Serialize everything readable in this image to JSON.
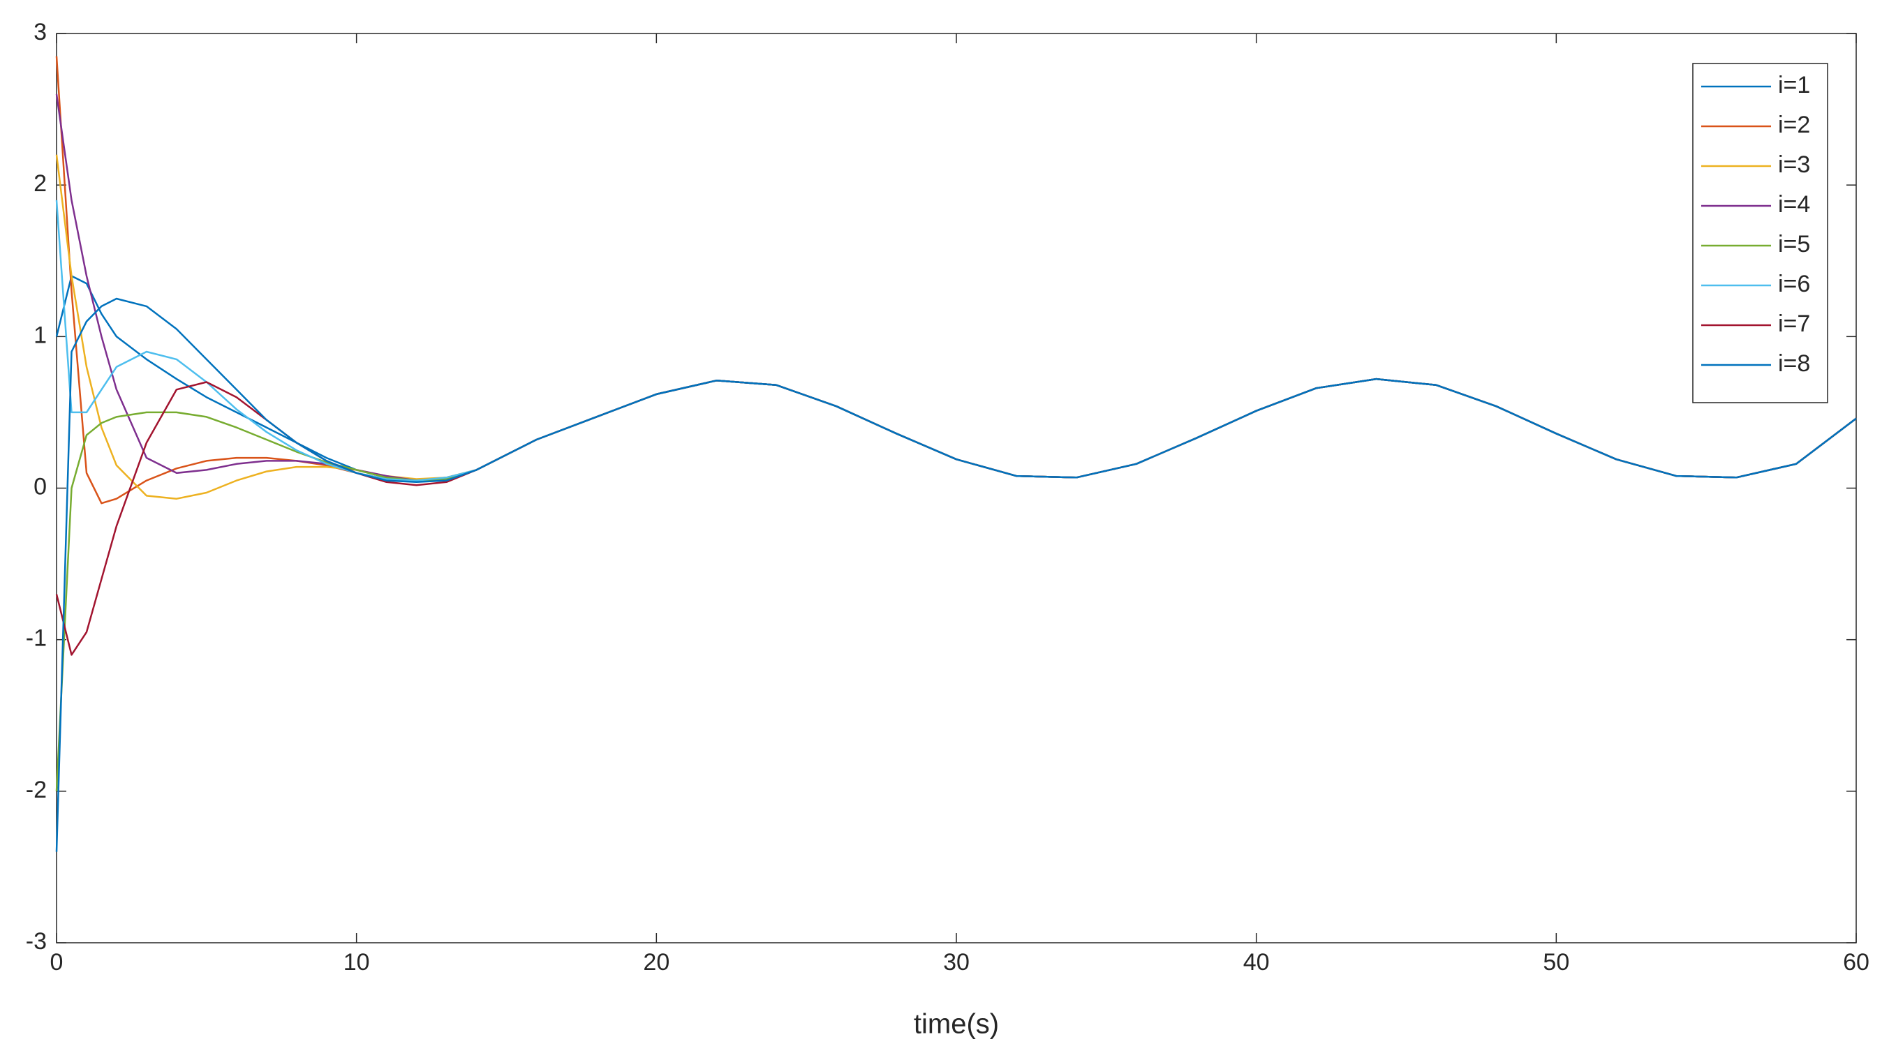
{
  "chart_data": {
    "type": "line",
    "xlabel": "time(s)",
    "x": [
      0,
      0.5,
      1,
      1.5,
      2,
      3,
      4,
      5,
      6,
      7,
      8,
      9,
      10,
      11,
      12,
      13,
      14,
      16,
      18,
      20,
      22,
      24,
      26,
      28,
      30,
      32,
      34,
      36,
      38,
      40,
      42,
      44,
      46,
      48,
      50,
      52,
      54,
      56,
      58,
      60
    ],
    "series": [
      {
        "name": "i=1",
        "color": "#0072BD",
        "values": [
          1.0,
          1.4,
          1.35,
          1.15,
          1.0,
          0.85,
          0.72,
          0.6,
          0.5,
          0.4,
          0.3,
          0.2,
          0.12,
          0.07,
          0.05,
          0.06,
          0.12,
          0.32,
          0.47,
          0.62,
          0.71,
          0.68,
          0.54,
          0.36,
          0.19,
          0.08,
          0.07,
          0.16,
          0.33,
          0.51,
          0.66,
          0.72,
          0.68,
          0.54,
          0.36,
          0.19,
          0.08,
          0.07,
          0.16,
          0.46
        ]
      },
      {
        "name": "i=2",
        "color": "#D95319",
        "values": [
          2.85,
          1.3,
          0.1,
          -0.1,
          -0.07,
          0.05,
          0.13,
          0.18,
          0.2,
          0.2,
          0.18,
          0.15,
          0.1,
          0.06,
          0.05,
          0.07,
          0.12,
          0.32,
          0.47,
          0.62,
          0.71,
          0.68,
          0.54,
          0.36,
          0.19,
          0.08,
          0.07,
          0.16,
          0.33,
          0.51,
          0.66,
          0.72,
          0.68,
          0.54,
          0.36,
          0.19,
          0.08,
          0.07,
          0.16,
          0.46
        ]
      },
      {
        "name": "i=3",
        "color": "#EDB120",
        "values": [
          2.2,
          1.4,
          0.8,
          0.4,
          0.15,
          -0.05,
          -0.07,
          -0.03,
          0.05,
          0.11,
          0.14,
          0.14,
          0.12,
          0.08,
          0.06,
          0.07,
          0.12,
          0.32,
          0.47,
          0.62,
          0.71,
          0.68,
          0.54,
          0.36,
          0.19,
          0.08,
          0.07,
          0.16,
          0.33,
          0.51,
          0.66,
          0.72,
          0.68,
          0.54,
          0.36,
          0.19,
          0.08,
          0.07,
          0.16,
          0.46
        ]
      },
      {
        "name": "i=4",
        "color": "#7E2F8E",
        "values": [
          2.6,
          1.9,
          1.4,
          1.0,
          0.65,
          0.2,
          0.1,
          0.12,
          0.16,
          0.18,
          0.18,
          0.16,
          0.12,
          0.08,
          0.05,
          0.06,
          0.12,
          0.32,
          0.47,
          0.62,
          0.71,
          0.68,
          0.54,
          0.36,
          0.19,
          0.08,
          0.07,
          0.16,
          0.33,
          0.51,
          0.66,
          0.72,
          0.68,
          0.54,
          0.36,
          0.19,
          0.08,
          0.07,
          0.16,
          0.46
        ]
      },
      {
        "name": "i=5",
        "color": "#77AC30",
        "values": [
          -2.0,
          0.0,
          0.35,
          0.43,
          0.47,
          0.5,
          0.5,
          0.47,
          0.4,
          0.32,
          0.24,
          0.17,
          0.12,
          0.07,
          0.05,
          0.06,
          0.12,
          0.32,
          0.47,
          0.62,
          0.71,
          0.68,
          0.54,
          0.36,
          0.19,
          0.08,
          0.07,
          0.16,
          0.33,
          0.51,
          0.66,
          0.72,
          0.68,
          0.54,
          0.36,
          0.19,
          0.08,
          0.07,
          0.16,
          0.46
        ]
      },
      {
        "name": "i=6",
        "color": "#4DBEEE",
        "values": [
          1.9,
          0.5,
          0.5,
          0.65,
          0.8,
          0.9,
          0.85,
          0.7,
          0.52,
          0.37,
          0.25,
          0.16,
          0.1,
          0.06,
          0.05,
          0.07,
          0.12,
          0.32,
          0.47,
          0.62,
          0.71,
          0.68,
          0.54,
          0.36,
          0.19,
          0.08,
          0.07,
          0.16,
          0.33,
          0.51,
          0.66,
          0.72,
          0.68,
          0.54,
          0.36,
          0.19,
          0.08,
          0.07,
          0.16,
          0.46
        ]
      },
      {
        "name": "i=7",
        "color": "#A2142F",
        "values": [
          -0.7,
          -1.1,
          -0.95,
          -0.6,
          -0.25,
          0.3,
          0.65,
          0.7,
          0.6,
          0.45,
          0.3,
          0.18,
          0.1,
          0.04,
          0.02,
          0.04,
          0.12,
          0.32,
          0.47,
          0.62,
          0.71,
          0.68,
          0.54,
          0.36,
          0.19,
          0.08,
          0.07,
          0.16,
          0.33,
          0.51,
          0.66,
          0.72,
          0.68,
          0.54,
          0.36,
          0.19,
          0.08,
          0.07,
          0.16,
          0.46
        ]
      },
      {
        "name": "i=8",
        "color": "#0072BD",
        "values": [
          -2.4,
          0.9,
          1.1,
          1.2,
          1.25,
          1.2,
          1.05,
          0.85,
          0.65,
          0.45,
          0.3,
          0.18,
          0.1,
          0.05,
          0.04,
          0.05,
          0.12,
          0.32,
          0.47,
          0.62,
          0.71,
          0.68,
          0.54,
          0.36,
          0.19,
          0.08,
          0.07,
          0.16,
          0.33,
          0.51,
          0.66,
          0.72,
          0.68,
          0.54,
          0.36,
          0.19,
          0.08,
          0.07,
          0.16,
          0.46
        ]
      }
    ],
    "xlim": [
      0,
      60
    ],
    "xticks": [
      0,
      10,
      20,
      30,
      40,
      50,
      60
    ],
    "ylim": [
      -3,
      3
    ],
    "yticks": [
      -3,
      -2,
      -1,
      0,
      1,
      2,
      3
    ],
    "legend": "top-right"
  }
}
